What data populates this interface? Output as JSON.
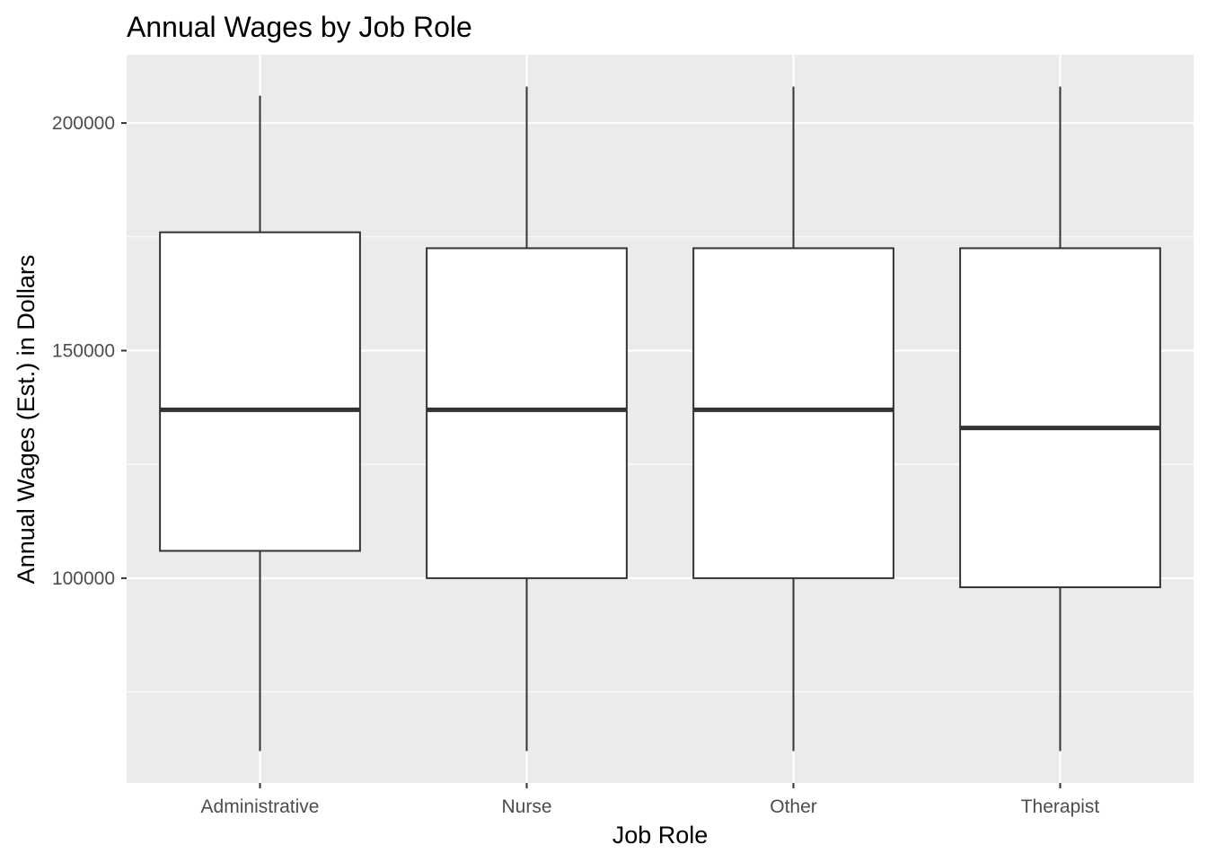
{
  "chart_data": {
    "type": "box",
    "title": "Annual Wages by Job Role",
    "xlabel": "Job Role",
    "ylabel": "Annual Wages (Est.) in Dollars",
    "ylim": [
      55000,
      215000
    ],
    "y_ticks": [
      100000,
      150000,
      200000
    ],
    "y_tick_labels": [
      "100000",
      "150000",
      "200000"
    ],
    "y_minor_ticks": [
      75000,
      125000,
      175000
    ],
    "grid": true,
    "legend": "none",
    "categories": [
      "Administrative",
      "Nurse",
      "Other",
      "Therapist"
    ],
    "boxes": [
      {
        "category": "Administrative",
        "min": 62000,
        "q1": 106000,
        "median": 137000,
        "q3": 176000,
        "max": 206000
      },
      {
        "category": "Nurse",
        "min": 62000,
        "q1": 100000,
        "median": 137000,
        "q3": 172500,
        "max": 208000
      },
      {
        "category": "Other",
        "min": 62000,
        "q1": 100000,
        "median": 137000,
        "q3": 172500,
        "max": 208000
      },
      {
        "category": "Therapist",
        "min": 62000,
        "q1": 98000,
        "median": 133000,
        "q3": 172500,
        "max": 208000
      }
    ],
    "colors": {
      "panel_background": "#EBEBEB",
      "grid": "#FFFFFF",
      "box_fill": "#FFFFFF",
      "box_line": "#333333",
      "tick_label": "#4D4D4D",
      "text": "#000000"
    }
  }
}
